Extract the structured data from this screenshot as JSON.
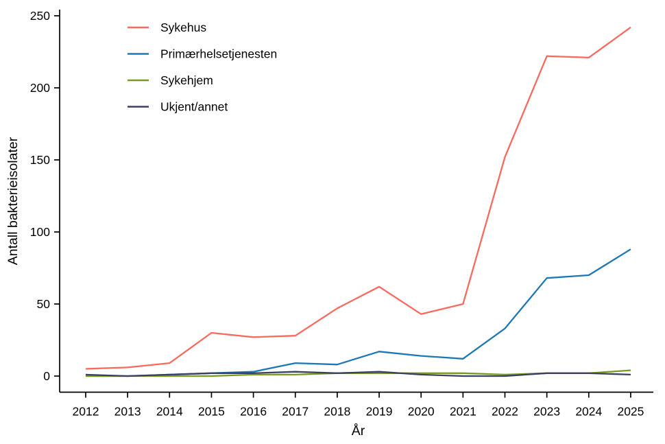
{
  "chart_data": {
    "type": "line",
    "title": "",
    "xlabel": "År",
    "ylabel": "Antall bakterieisolater",
    "x": [
      2012,
      2013,
      2014,
      2015,
      2016,
      2017,
      2018,
      2019,
      2020,
      2021,
      2022,
      2023,
      2024,
      2025
    ],
    "series": [
      {
        "name": "Sykehus",
        "color": "#F9695E",
        "values": [
          5,
          6,
          9,
          30,
          27,
          28,
          47,
          62,
          43,
          50,
          152,
          222,
          221,
          242
        ]
      },
      {
        "name": "Primærhelsetjenesten",
        "color": "#1B78B5",
        "values": [
          0,
          0,
          1,
          2,
          3,
          9,
          8,
          17,
          14,
          12,
          33,
          68,
          70,
          88
        ]
      },
      {
        "name": "Sykehjem",
        "color": "#769B1E",
        "values": [
          0,
          0,
          0,
          0,
          1,
          1,
          2,
          2,
          2,
          2,
          1,
          2,
          2,
          4
        ]
      },
      {
        "name": "Ukjent/annet",
        "color": "#3B3F63",
        "values": [
          1,
          0,
          1,
          2,
          2,
          3,
          2,
          3,
          1,
          0,
          0,
          2,
          2,
          1
        ]
      }
    ],
    "ylim": [
      0,
      250
    ],
    "yticks": [
      0,
      50,
      100,
      150,
      200,
      250
    ],
    "grid": false,
    "legend_position": "top-left-inside",
    "axis_color": "#000000",
    "text_color": "#000000",
    "background": "#FFFFFF"
  }
}
